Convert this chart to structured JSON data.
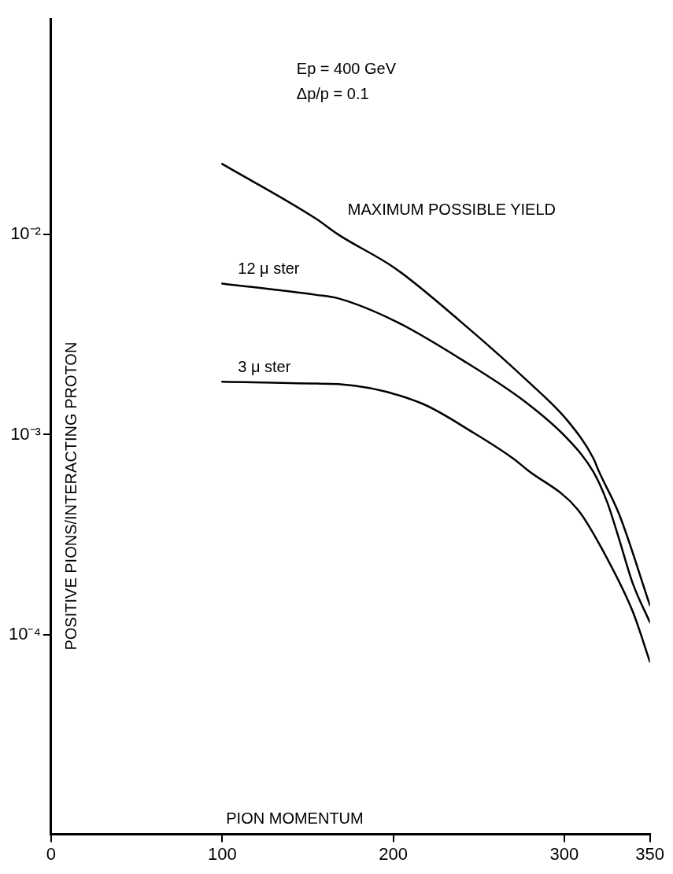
{
  "chart_data": {
    "type": "line",
    "xlabel": "PION MOMENTUM",
    "ylabel": "POSITIVE PIONS/INTERACTING PROTON",
    "annotations": [
      "Ep = 400 GeV",
      "Δp/p = 0.1"
    ],
    "series": [
      {
        "name": "MAXIMUM POSSIBLE YIELD",
        "color": "#000000",
        "x": [
          100,
          155,
          168,
          201,
          239,
          278,
          302,
          317,
          320,
          332,
          350
        ],
        "values": [
          0.0226,
          0.012,
          0.01,
          0.0068,
          0.0037,
          0.00187,
          0.00117,
          0.00076,
          0.00066,
          0.0004,
          0.00014
        ]
      },
      {
        "name": "12 μ ster",
        "color": "#000000",
        "x": [
          100,
          155,
          168,
          201,
          239,
          278,
          302,
          317,
          325,
          332,
          340,
          350
        ],
        "values": [
          0.0057,
          0.005,
          0.0048,
          0.0037,
          0.0024,
          0.00144,
          0.00095,
          0.00065,
          0.00046,
          0.0003,
          0.00018,
          0.000115
        ]
      },
      {
        "name": "3 μ ster",
        "color": "#000000",
        "x": [
          100,
          155,
          168,
          216,
          247,
          270,
          278,
          308,
          325,
          340,
          350
        ],
        "values": [
          0.00184,
          0.0018,
          0.00179,
          0.00144,
          0.00102,
          0.00076,
          0.00067,
          0.00042,
          0.00024,
          0.00013,
          7.3e-05
        ]
      }
    ],
    "xlim": [
      0,
      350
    ],
    "xticks": [
      0,
      100,
      200,
      300,
      350
    ],
    "ylim": [
      1e-05,
      0.12
    ],
    "yticks": [
      {
        "value": 0.01,
        "label": "10⁻²"
      },
      {
        "value": 0.001,
        "label": "10⁻³"
      },
      {
        "value": 0.0001,
        "label": "10⁻⁴"
      }
    ],
    "log": "y",
    "grid": false,
    "legend": false,
    "marker": "none",
    "line_style": "solid"
  }
}
